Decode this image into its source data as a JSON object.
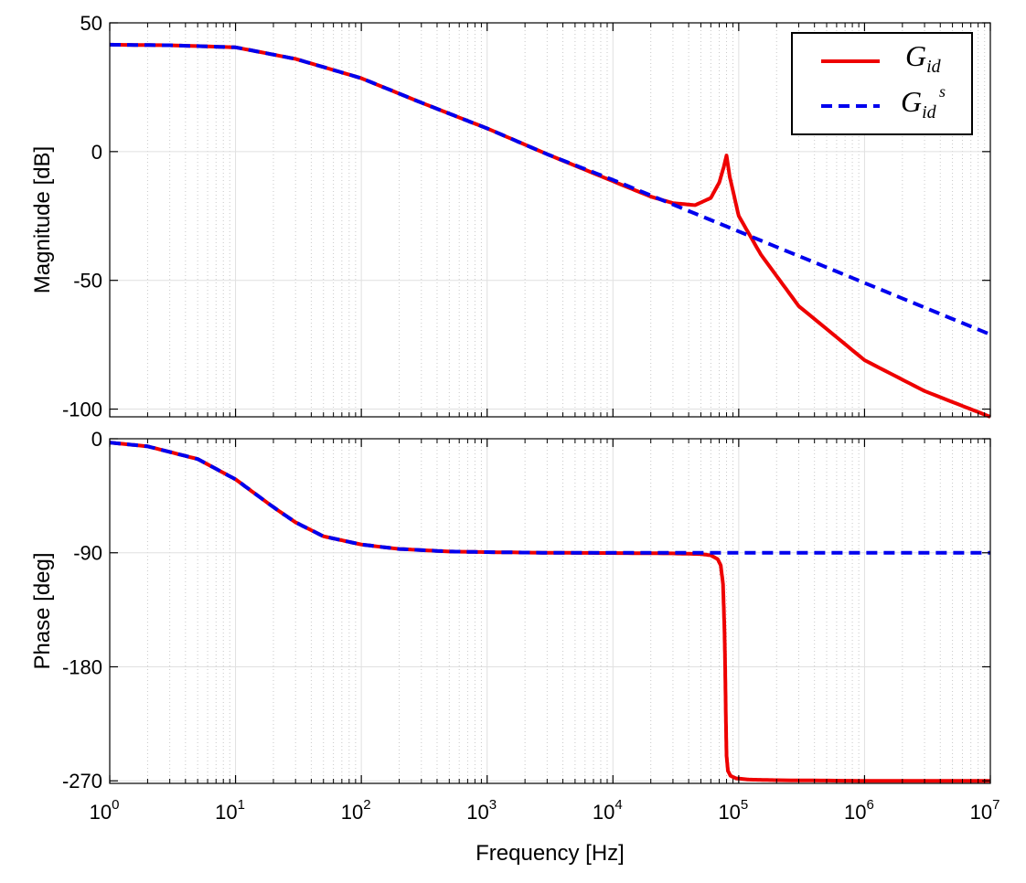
{
  "chart_data": [
    {
      "id": "magnitude",
      "type": "line",
      "xscale": "log",
      "xlim": [
        1,
        10000000
      ],
      "ylim": [
        -103,
        50
      ],
      "yticks": [
        50,
        0,
        -50,
        -100
      ],
      "ytick_labels": [
        "50",
        "0",
        "-50",
        "-100"
      ],
      "ylabel": "Magnitude [dB]",
      "grid": true,
      "legend": {
        "placement": "top-right",
        "entries": [
          {
            "symbol": "G",
            "subscript": "id",
            "superscript": ""
          },
          {
            "symbol": "G",
            "subscript": "id",
            "superscript": "s"
          }
        ]
      },
      "series": [
        {
          "color": "#ee0000",
          "style": "solid",
          "x": [
            1,
            3,
            10,
            30,
            100,
            300,
            1000,
            3000,
            10000,
            20000,
            30000,
            45000,
            60000,
            70000,
            76000,
            80000,
            85000,
            100000,
            150000,
            300000,
            1000000,
            3000000,
            10000000
          ],
          "y": [
            41.5,
            41.3,
            40.5,
            36,
            28.5,
            19,
            9,
            -1,
            -11.5,
            -17.5,
            -20,
            -20.8,
            -18,
            -12,
            -6,
            -1.5,
            -10,
            -25,
            -40,
            -60,
            -81,
            -93,
            -103
          ]
        },
        {
          "color": "#0000ee",
          "style": "dashed",
          "x": [
            1,
            3,
            10,
            30,
            100,
            300,
            1000,
            3000,
            10000,
            100000,
            1000000,
            10000000
          ],
          "y": [
            41.5,
            41.3,
            40.5,
            36,
            28.5,
            19,
            9,
            -1,
            -11,
            -31,
            -51,
            -71
          ]
        }
      ]
    },
    {
      "id": "phase",
      "type": "line",
      "xscale": "log",
      "xlim": [
        1,
        10000000
      ],
      "ylim": [
        -272,
        0
      ],
      "yticks": [
        0,
        -90,
        -180,
        -270
      ],
      "ytick_labels": [
        "0",
        "-90",
        "-180",
        "-270"
      ],
      "ylabel": "Phase [deg]",
      "xlabel": "Frequency [Hz]",
      "xtick_base": "10",
      "xtick_exponents": [
        "0",
        "1",
        "2",
        "3",
        "4",
        "5",
        "6",
        "7"
      ],
      "grid": true,
      "series": [
        {
          "color": "#ee0000",
          "style": "solid",
          "x": [
            1,
            2,
            5,
            10,
            20,
            30,
            50,
            100,
            200,
            500,
            1000,
            3000,
            10000,
            30000,
            50000,
            60000,
            68000,
            72000,
            75000,
            77000,
            78000,
            79000,
            80000,
            82000,
            86000,
            95000,
            120000,
            200000,
            1000000,
            10000000
          ],
          "y": [
            -3,
            -6,
            -16,
            -32,
            -54,
            -66,
            -77,
            -83.5,
            -87,
            -89,
            -89.5,
            -90,
            -90.2,
            -90.5,
            -91,
            -92,
            -95,
            -100,
            -115,
            -150,
            -180,
            -220,
            -250,
            -262,
            -266,
            -268,
            -269,
            -269.5,
            -270,
            -270
          ]
        },
        {
          "color": "#0000ee",
          "style": "dashed",
          "x": [
            1,
            2,
            5,
            10,
            20,
            30,
            50,
            100,
            200,
            500,
            1000,
            3000,
            10000,
            10000000
          ],
          "y": [
            -3,
            -6,
            -16,
            -32,
            -54,
            -66,
            -77,
            -83.5,
            -87,
            -89,
            -89.5,
            -90,
            -90,
            -90
          ]
        }
      ]
    }
  ]
}
